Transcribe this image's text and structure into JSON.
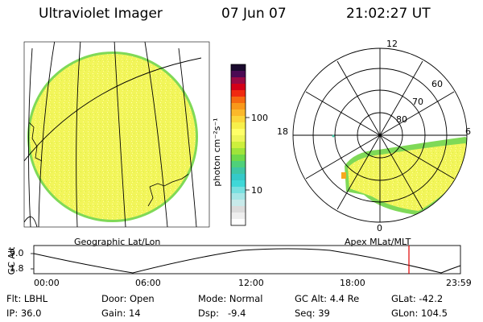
{
  "header": {
    "title": "Ultraviolet Imager",
    "date": "07 Jun 07",
    "time": "21:02:27 UT"
  },
  "left_panel": {
    "caption": "Geographic Lat/Lon"
  },
  "right_panel": {
    "caption": "Apex MLat/MLT",
    "mlt_labels": {
      "top": "12",
      "left": "18",
      "right": "6",
      "bottom": "0"
    },
    "lat_labels": [
      "60",
      "70",
      "80"
    ]
  },
  "colorbar": {
    "unit_label": "photon cm⁻²s⁻¹",
    "ticks": [
      "100",
      "10"
    ]
  },
  "timeline": {
    "ylabel": "GC Alt",
    "ymax": "9.0",
    "ymin": "1.8",
    "xticks": [
      "00:00",
      "06:00",
      "12:00",
      "18:00",
      "23:59"
    ],
    "cursor_color": "#e00000"
  },
  "info": {
    "flt": "Flt: LBHL",
    "ip": "IP: 36.0",
    "door": "Door: Open",
    "gain": "Gain: 14",
    "mode": "Mode: Normal",
    "dsp": "Dsp:   -9.4",
    "gcalt": "GC Alt: 4.4 Re",
    "seq": "Seq: 39",
    "glat": "GLat: -42.2",
    "glon": "GLon: 104.5"
  }
}
